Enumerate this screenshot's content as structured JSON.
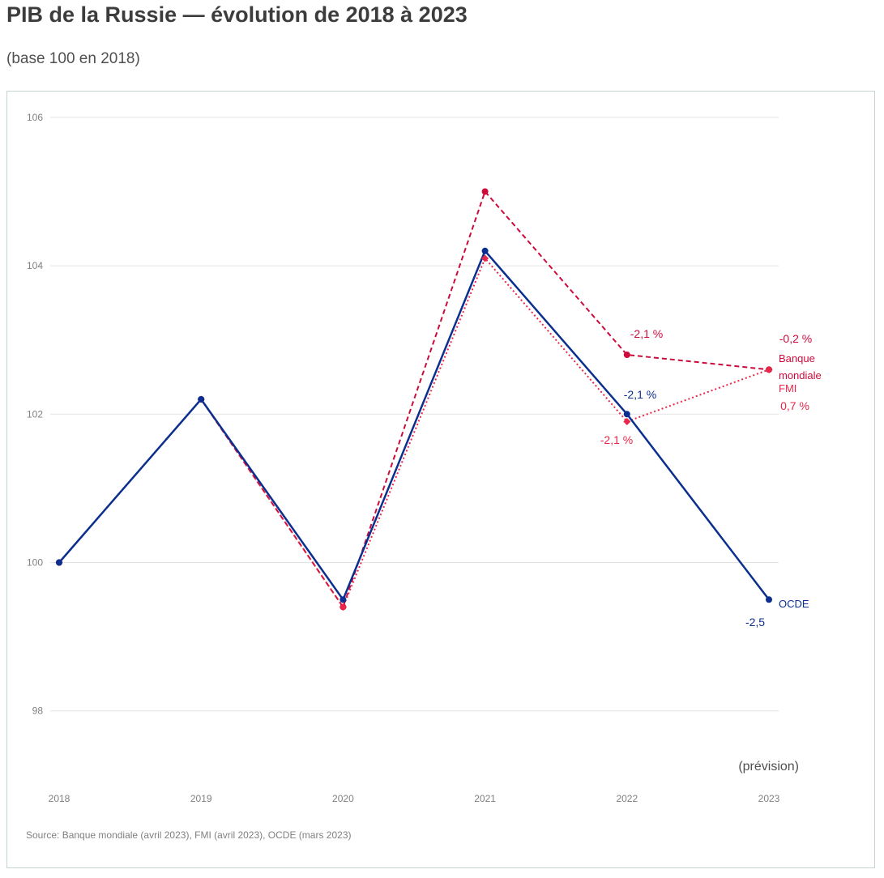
{
  "title": "PIB de la Russie — évolution de 2018 à 2023",
  "subtitle": "(base 100 en 2018)",
  "source": "Source: Banque mondiale (avril 2023), FMI (avril 2023), OCDE (mars 2023)",
  "note": "(prévision)",
  "colors": {
    "ocde": "#0a2f8f",
    "banque": "#cc0a3c",
    "fmi": "#e8274b",
    "grid": "#e3e3e3"
  },
  "chart_data": {
    "type": "line",
    "x": [
      "2018",
      "2019",
      "2020",
      "2021",
      "2022",
      "2023"
    ],
    "y_ticks": [
      "106",
      "104",
      "102",
      "100",
      "98"
    ],
    "ylim": [
      97,
      106.2
    ],
    "grid": true,
    "series": [
      {
        "name": "Banque mondiale",
        "style": "dashed",
        "marker": "circle",
        "values": [
          100,
          102.2,
          99.4,
          105.0,
          102.8,
          102.6
        ]
      },
      {
        "name": "FMI",
        "style": "dotted",
        "marker": "diamond",
        "values": [
          100,
          102.2,
          99.4,
          104.1,
          101.9,
          102.6
        ]
      },
      {
        "name": "OCDE",
        "style": "solid",
        "marker": "circle",
        "values": [
          100,
          102.2,
          99.5,
          104.2,
          102.0,
          99.5
        ]
      }
    ],
    "annotations": {
      "banque_2022": "-2,1 %",
      "fmi_2022": "-2,1 %",
      "ocde_2022": "-2,1 %",
      "banque_2023": "-0,2 %",
      "fmi_2023": "0,7 %",
      "ocde_2023": "-2,5"
    },
    "end_labels": {
      "banque_line1": "Banque",
      "banque_line2": "mondiale",
      "fmi": "FMI",
      "ocde": "OCDE"
    }
  }
}
